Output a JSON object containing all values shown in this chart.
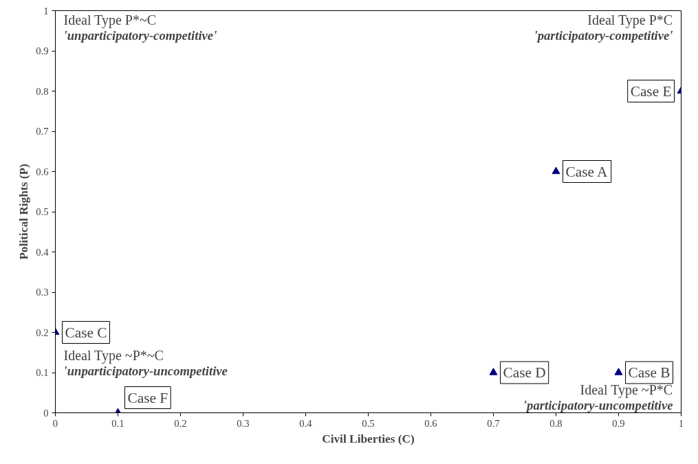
{
  "chart_data": {
    "type": "scatter",
    "xlabel": "Civil Liberties (C)",
    "ylabel": "Political Rights (P)",
    "x": [
      0.8,
      0.9,
      0,
      0.7,
      1,
      0.1
    ],
    "series": [
      {
        "color": "#000080",
        "values": [
          0.6,
          0.1,
          0.2,
          0.1,
          0.8,
          0
        ]
      }
    ],
    "marker": "triangle",
    "grid": false,
    "xlim": [
      0,
      1
    ],
    "ylim": [
      0,
      1
    ],
    "xticks": [
      0,
      0.1,
      0.2,
      0.3,
      0.4,
      0.5,
      0.6,
      0.7,
      0.8,
      0.9,
      1
    ],
    "yticks": [
      0,
      0.1,
      0.2,
      0.3,
      0.4,
      0.5,
      0.6,
      0.7,
      0.8,
      0.9,
      1
    ],
    "annotations": [
      "Ideal Type P*~C",
      "'unparticipatory-competitive'",
      "Ideal Type P*C",
      "'participatory-competitive'",
      "Ideal Type ~P*~C",
      "'unparticipatory-uncompetitive",
      "Ideal Type ~P*C",
      "'participatory-uncompetitive",
      {
        "text": "Case A",
        "x": 0.8,
        "y": 0.6
      },
      {
        "text": "Case B",
        "x": 0.9,
        "y": 0.1
      },
      {
        "text": "Case C",
        "x": 0,
        "y": 0.2
      },
      {
        "text": "Case D",
        "x": 0.7,
        "y": 0.1
      },
      {
        "text": "Case E",
        "x": 1,
        "y": 0.8
      },
      {
        "text": "Case F",
        "x": 0.1,
        "y": 0
      }
    ]
  }
}
